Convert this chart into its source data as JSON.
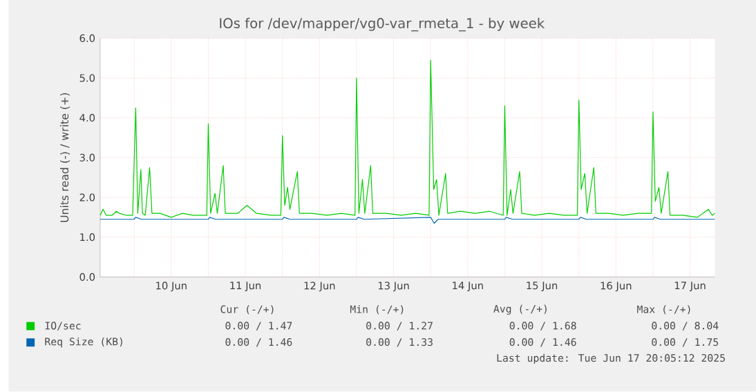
{
  "chart_data": {
    "type": "line",
    "title": "IOs for /dev/mapper/vg0-var_rmeta_1 - by week",
    "ylabel": "Units read (-) / write (+)",
    "xlim": [
      "2025-06-09T13:00",
      "2025-06-17T20:05"
    ],
    "ylim": [
      0,
      6
    ],
    "xticks": [
      {
        "value": "2025-06-10",
        "label": null
      },
      {
        "value": "2025-06-10T12:00",
        "label": "10 Jun"
      },
      {
        "value": "2025-06-11",
        "label": null
      },
      {
        "value": "2025-06-11T12:00",
        "label": "11 Jun"
      },
      {
        "value": "2025-06-12",
        "label": null
      },
      {
        "value": "2025-06-12T12:00",
        "label": "12 Jun"
      },
      {
        "value": "2025-06-13",
        "label": null
      },
      {
        "value": "2025-06-13T12:00",
        "label": "13 Jun"
      },
      {
        "value": "2025-06-14",
        "label": null
      },
      {
        "value": "2025-06-14T12:00",
        "label": "14 Jun"
      },
      {
        "value": "2025-06-15",
        "label": null
      },
      {
        "value": "2025-06-15T12:00",
        "label": "15 Jun"
      },
      {
        "value": "2025-06-16",
        "label": null
      },
      {
        "value": "2025-06-16T12:00",
        "label": "16 Jun"
      },
      {
        "value": "2025-06-17",
        "label": null
      },
      {
        "value": "2025-06-17T12:00",
        "label": "17 Jun"
      }
    ],
    "yticks": [
      {
        "value": 0,
        "label": "0.0"
      },
      {
        "value": 1,
        "label": "1.0"
      },
      {
        "value": 2,
        "label": "2.0"
      },
      {
        "value": 3,
        "label": "3.0"
      },
      {
        "value": 4,
        "label": "4.0"
      },
      {
        "value": 5,
        "label": "5.0"
      },
      {
        "value": 6,
        "label": "6.0"
      }
    ],
    "grid": true,
    "legend": "bottom",
    "series": [
      {
        "name": "IO/sec",
        "color": "#00cc00",
        "x": [
          "2025-06-09T13:00",
          "2025-06-09T13:55",
          "2025-06-09T14:55",
          "2025-06-09T16:50",
          "2025-06-09T18:15",
          "2025-06-09T19:10",
          "2025-06-09T21:35",
          "2025-06-09T23:30",
          "2025-06-10T00:30",
          "2025-06-10T01:10",
          "2025-06-10T02:10",
          "2025-06-10T02:40",
          "2025-06-10T03:35",
          "2025-06-10T05:00",
          "2025-06-10T05:45",
          "2025-06-10T08:25",
          "2025-06-10T12:00",
          "2025-06-10T15:35",
          "2025-06-10T19:10",
          "2025-06-10T23:30",
          "2025-06-11T00:00",
          "2025-06-11T00:45",
          "2025-06-11T02:10",
          "2025-06-11T02:55",
          "2025-06-11T04:50",
          "2025-06-11T05:30",
          "2025-06-11T09:35",
          "2025-06-11T12:30",
          "2025-06-11T15:35",
          "2025-06-11T20:25",
          "2025-06-11T23:30",
          "2025-06-12T00:00",
          "2025-06-12T00:45",
          "2025-06-12T01:40",
          "2025-06-12T02:25",
          "2025-06-12T04:50",
          "2025-06-12T05:30",
          "2025-06-12T09:35",
          "2025-06-12T14:25",
          "2025-06-12T19:10",
          "2025-06-12T23:30",
          "2025-06-13T00:00",
          "2025-06-13T00:45",
          "2025-06-13T01:55",
          "2025-06-13T02:40",
          "2025-06-13T04:35",
          "2025-06-13T05:15",
          "2025-06-13T09:35",
          "2025-06-13T14:25",
          "2025-06-13T19:10",
          "2025-06-13T23:30",
          "2025-06-14T00:00",
          "2025-06-14T01:00",
          "2025-06-14T01:55",
          "2025-06-14T02:40",
          "2025-06-14T04:50",
          "2025-06-14T05:30",
          "2025-06-14T09:35",
          "2025-06-14T14:25",
          "2025-06-14T19:10",
          "2025-06-14T23:30",
          "2025-06-15T00:00",
          "2025-06-15T00:45",
          "2025-06-15T01:55",
          "2025-06-15T02:40",
          "2025-06-15T04:50",
          "2025-06-15T05:30",
          "2025-06-15T09:35",
          "2025-06-15T14:25",
          "2025-06-15T19:10",
          "2025-06-15T23:30",
          "2025-06-16T00:00",
          "2025-06-16T00:45",
          "2025-06-16T01:55",
          "2025-06-16T02:40",
          "2025-06-16T04:50",
          "2025-06-16T05:30",
          "2025-06-16T09:35",
          "2025-06-16T14:25",
          "2025-06-16T19:10",
          "2025-06-16T23:30",
          "2025-06-17T00:00",
          "2025-06-17T00:45",
          "2025-06-17T01:55",
          "2025-06-17T02:40",
          "2025-06-17T04:50",
          "2025-06-17T05:30",
          "2025-06-17T09:35",
          "2025-06-17T14:25",
          "2025-06-17T18:00",
          "2025-06-17T19:10",
          "2025-06-17T20:05"
        ],
        "values": [
          1.55,
          1.7,
          1.55,
          1.55,
          1.65,
          1.6,
          1.55,
          1.55,
          4.25,
          1.6,
          2.7,
          1.6,
          1.55,
          2.75,
          1.6,
          1.6,
          1.5,
          1.6,
          1.55,
          1.55,
          3.85,
          1.6,
          2.1,
          1.6,
          2.8,
          1.6,
          1.6,
          1.8,
          1.6,
          1.55,
          1.55,
          3.55,
          1.8,
          2.25,
          1.7,
          2.65,
          1.6,
          1.6,
          1.55,
          1.6,
          1.55,
          5.0,
          1.6,
          2.45,
          1.6,
          2.8,
          1.6,
          1.6,
          1.55,
          1.6,
          1.55,
          5.45,
          2.2,
          2.45,
          1.55,
          2.6,
          1.6,
          1.65,
          1.6,
          1.65,
          1.55,
          4.3,
          1.55,
          2.2,
          1.6,
          2.65,
          1.6,
          1.55,
          1.6,
          1.55,
          1.55,
          4.45,
          2.2,
          2.6,
          1.6,
          2.75,
          1.6,
          1.6,
          1.55,
          1.6,
          1.6,
          4.15,
          1.9,
          2.25,
          1.6,
          2.65,
          1.55,
          1.55,
          1.5,
          1.7,
          1.55,
          1.6
        ]
      },
      {
        "name": "Req Size (KB)",
        "color": "#0066b3",
        "x": [
          "2025-06-09T13:00",
          "2025-06-10T00:00",
          "2025-06-10T00:30",
          "2025-06-10T02:25",
          "2025-06-11T00:00",
          "2025-06-11T00:30",
          "2025-06-11T02:25",
          "2025-06-12T00:00",
          "2025-06-12T00:30",
          "2025-06-12T02:25",
          "2025-06-13T00:00",
          "2025-06-13T00:30",
          "2025-06-13T02:25",
          "2025-06-14T00:00",
          "2025-06-14T01:10",
          "2025-06-14T02:25",
          "2025-06-15T00:00",
          "2025-06-15T00:30",
          "2025-06-15T02:25",
          "2025-06-16T00:00",
          "2025-06-16T00:30",
          "2025-06-16T02:25",
          "2025-06-17T00:00",
          "2025-06-17T00:30",
          "2025-06-17T02:25",
          "2025-06-17T20:05"
        ],
        "values": [
          1.45,
          1.45,
          1.5,
          1.45,
          1.45,
          1.5,
          1.45,
          1.45,
          1.5,
          1.45,
          1.45,
          1.5,
          1.45,
          1.5,
          1.35,
          1.45,
          1.45,
          1.5,
          1.45,
          1.45,
          1.5,
          1.45,
          1.45,
          1.5,
          1.45,
          1.45
        ]
      }
    ],
    "annotations": [
      "Cur (-/+)",
      "Min (-/+)",
      "Avg (-/+)",
      "Max (-/+)",
      "0.00 / 1.47",
      "0.00 / 1.27",
      "0.00 / 1.68",
      "0.00 / 8.04",
      "0.00 / 1.46",
      "0.00 / 1.33",
      "0.00 / 1.46",
      "0.00 / 1.75",
      "Last update: Tue Jun 17 20:05:12 2025"
    ]
  }
}
